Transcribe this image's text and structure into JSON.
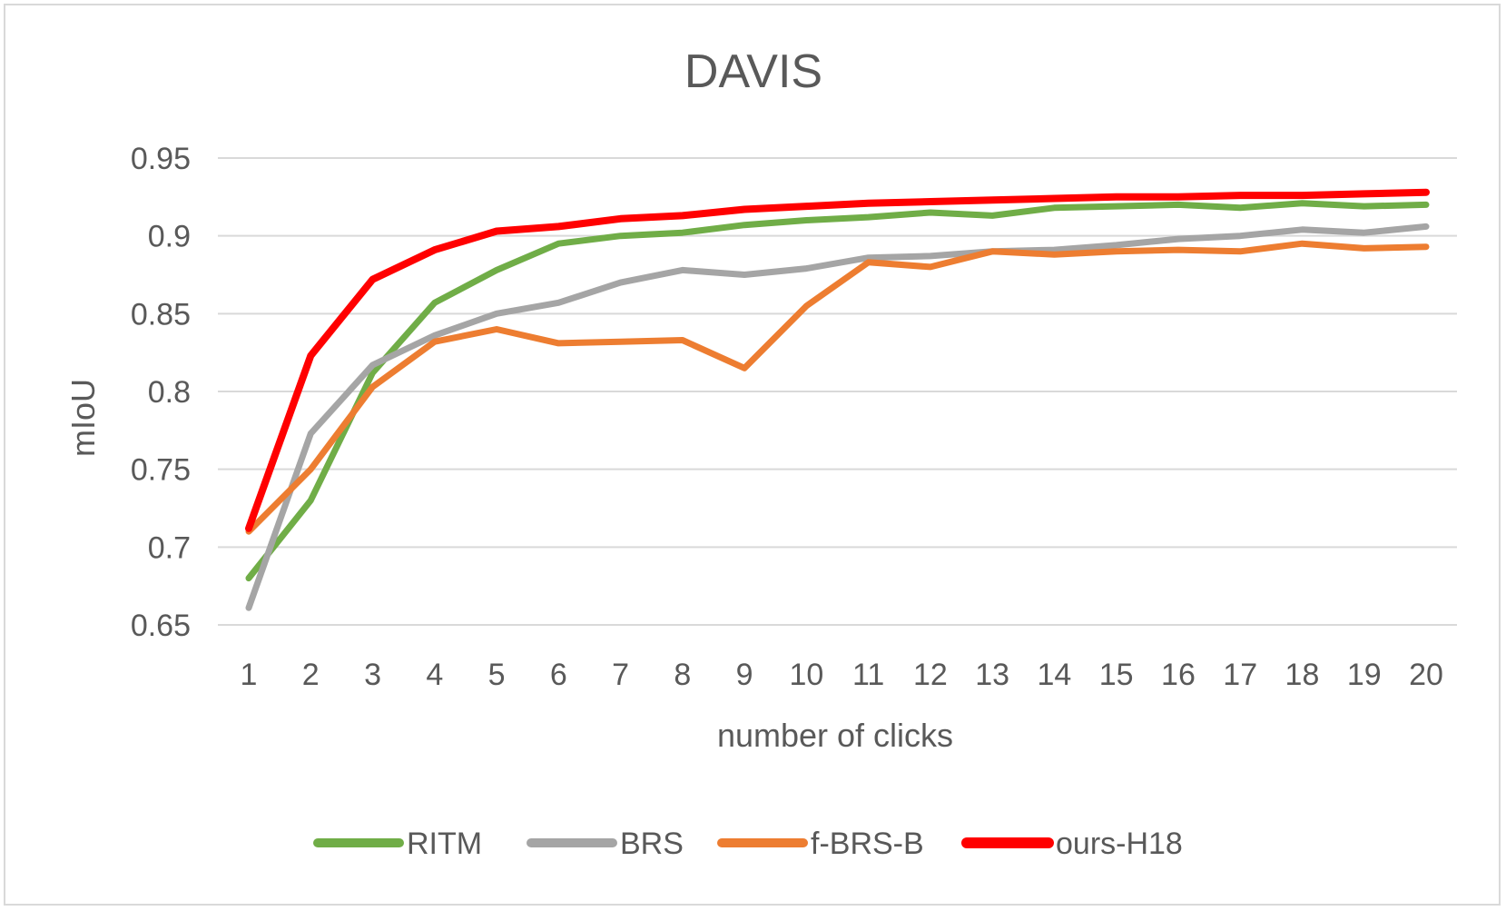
{
  "chart_data": {
    "type": "line",
    "title": "DAVIS",
    "xlabel": "number of clicks",
    "ylabel": "mIoU",
    "x": [
      1,
      2,
      3,
      4,
      5,
      6,
      7,
      8,
      9,
      10,
      11,
      12,
      13,
      14,
      15,
      16,
      17,
      18,
      19,
      20
    ],
    "ylim": [
      0.65,
      0.95
    ],
    "yticks": [
      0.65,
      0.7,
      0.75,
      0.8,
      0.85,
      0.9,
      0.95
    ],
    "ytick_labels": [
      "0.65",
      "0.7",
      "0.75",
      "0.8",
      "0.85",
      "0.9",
      "0.95"
    ],
    "grid": true,
    "legend_position": "bottom",
    "series": [
      {
        "name": "RITM",
        "color": "#70ad47",
        "values": [
          0.68,
          0.73,
          0.812,
          0.857,
          0.878,
          0.895,
          0.9,
          0.902,
          0.907,
          0.91,
          0.912,
          0.915,
          0.913,
          0.918,
          0.919,
          0.92,
          0.918,
          0.921,
          0.919,
          0.92
        ]
      },
      {
        "name": "BRS",
        "color": "#a5a5a5",
        "values": [
          0.661,
          0.773,
          0.817,
          0.836,
          0.85,
          0.857,
          0.87,
          0.878,
          0.875,
          0.879,
          0.886,
          0.887,
          0.89,
          0.891,
          0.894,
          0.898,
          0.9,
          0.904,
          0.902,
          0.906
        ]
      },
      {
        "name": "f-BRS-B",
        "color": "#ed7d31",
        "values": [
          0.71,
          0.75,
          0.803,
          0.832,
          0.84,
          0.831,
          0.832,
          0.833,
          0.815,
          0.855,
          0.883,
          0.88,
          0.89,
          0.888,
          0.89,
          0.891,
          0.89,
          0.895,
          0.892,
          0.893
        ]
      },
      {
        "name": "ours-H18",
        "color": "#ff0000",
        "values": [
          0.712,
          0.823,
          0.872,
          0.891,
          0.903,
          0.906,
          0.911,
          0.913,
          0.917,
          0.919,
          0.921,
          0.922,
          0.923,
          0.924,
          0.925,
          0.925,
          0.926,
          0.926,
          0.927,
          0.928
        ]
      }
    ]
  }
}
